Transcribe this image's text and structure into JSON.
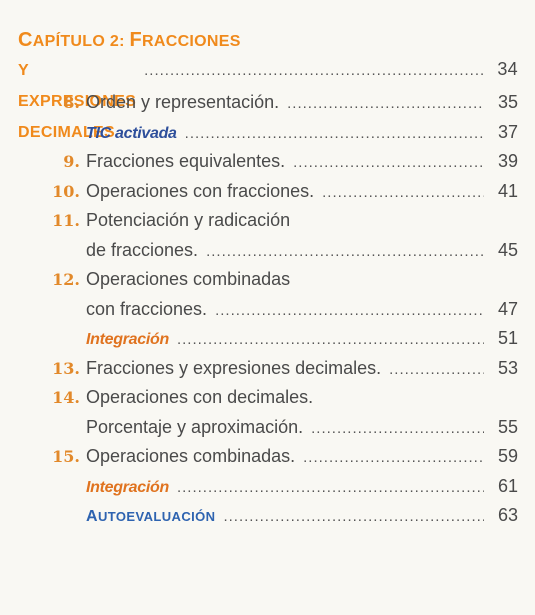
{
  "chapter": {
    "line1": "Capítulo 2: Fracciones",
    "line2": "y expresiones decimales",
    "page": "34"
  },
  "entries": [
    {
      "number": "8.",
      "lines": [
        "Orden y representación."
      ],
      "page": "35",
      "type": "lesson"
    },
    {
      "number": "",
      "lines": [
        "TIC activada"
      ],
      "page": "37",
      "type": "tic"
    },
    {
      "number": "9.",
      "lines": [
        "Fracciones equivalentes."
      ],
      "page": "39",
      "type": "lesson"
    },
    {
      "number": "10.",
      "lines": [
        "Operaciones con fracciones."
      ],
      "page": "41",
      "type": "lesson"
    },
    {
      "number": "11.",
      "lines": [
        "Potenciación y radicación",
        "de fracciones."
      ],
      "page": "45",
      "type": "lesson"
    },
    {
      "number": "12.",
      "lines": [
        "Operaciones combinadas",
        "con fracciones."
      ],
      "page": "47",
      "type": "lesson"
    },
    {
      "number": "",
      "lines": [
        "Integración"
      ],
      "page": "51",
      "type": "integration"
    },
    {
      "number": "13.",
      "lines": [
        "Fracciones y expresiones decimales."
      ],
      "page": "53",
      "type": "lesson"
    },
    {
      "number": "14.",
      "lines": [
        "Operaciones con decimales.",
        "Porcentaje y aproximación."
      ],
      "page": "55",
      "type": "lesson"
    },
    {
      "number": "15.",
      "lines": [
        "Operaciones combinadas."
      ],
      "page": "59",
      "type": "lesson"
    },
    {
      "number": "",
      "lines": [
        "Integración"
      ],
      "page": "61",
      "type": "integration"
    },
    {
      "number": "",
      "lines": [
        "Autoevaluación"
      ],
      "page": "63",
      "type": "self-assessment"
    }
  ],
  "colors": {
    "chapter": "#f08a1c",
    "number": "#e2892a",
    "tic": "#2e4f9b",
    "integration": "#e0731f",
    "self_assessment": "#2e63b0",
    "text": "#4a4a4a"
  }
}
